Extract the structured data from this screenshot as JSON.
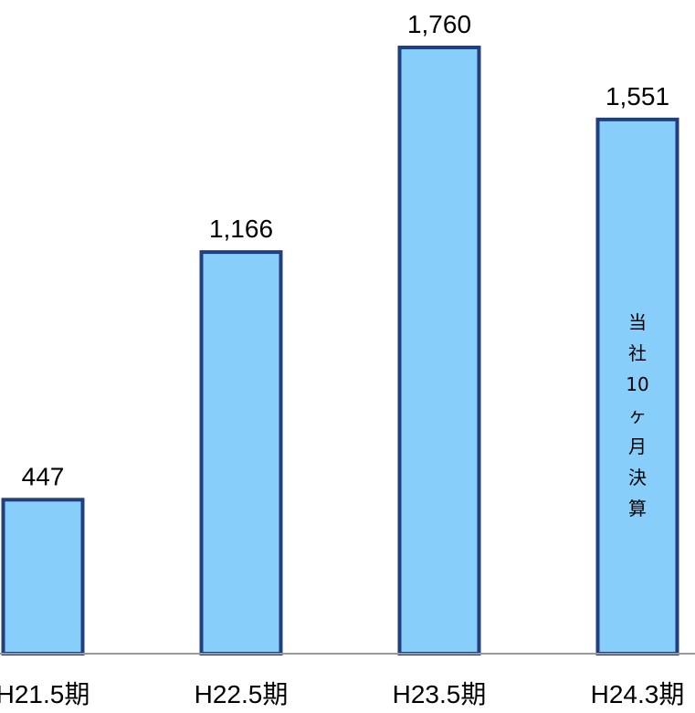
{
  "chart_data": {
    "type": "bar",
    "categories": [
      "H21.5期",
      "H22.5期",
      "H23.5期",
      "H24.3期"
    ],
    "values": [
      447,
      1166,
      1760,
      1551
    ],
    "value_labels": [
      "447",
      "1,166",
      "1,760",
      "1,551"
    ],
    "bar_notes": [
      "",
      "",
      "",
      "当社10ヶ月決算"
    ],
    "title": "",
    "xlabel": "",
    "ylabel": "",
    "ylim": [
      0,
      1900
    ],
    "grid": false,
    "legend": "none",
    "colors": {
      "bar_fill": "#87CEFA",
      "bar_stroke": "#1F3F80",
      "axis": "#999999"
    }
  }
}
